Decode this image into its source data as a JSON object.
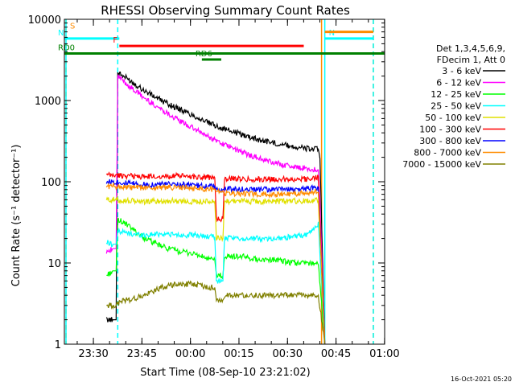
{
  "chart_data": {
    "type": "line",
    "title": "RHESSI Observing Summary Count Rates",
    "xlabel": "Start Time (08-Sep-10 23:21:02)",
    "ylabel": "Count Rate (s⁻¹ detector⁻¹)",
    "yscale": "log",
    "ylim": [
      1,
      10000
    ],
    "xlim_minutes": [
      0,
      99
    ],
    "x_tick_labels": [
      "23:30",
      "23:45",
      "00:00",
      "00:15",
      "00:30",
      "00:45",
      "01:00"
    ],
    "x_tick_minutes": [
      8.97,
      23.97,
      38.97,
      53.97,
      68.97,
      83.97,
      98.97
    ],
    "y_tick_labels": [
      "1",
      "10",
      "100",
      "1000",
      "10000"
    ],
    "y_tick_values": [
      1,
      10,
      100,
      1000,
      10000
    ],
    "legend_header": [
      "Det 1,3,4,5,6,9,",
      "FDecim 1, Att 0"
    ],
    "legend_position": "right",
    "footer_date": "16-Oct-2021 05:20",
    "series": [
      {
        "name": "3 - 6 keV",
        "color": "#000000",
        "points": [
          [
            13,
            2
          ],
          [
            15,
            2
          ],
          [
            16,
            2
          ],
          [
            16.5,
            2200
          ],
          [
            20,
            1800
          ],
          [
            25,
            1300
          ],
          [
            30,
            1000
          ],
          [
            35,
            800
          ],
          [
            40,
            650
          ],
          [
            45,
            520
          ],
          [
            50,
            440
          ],
          [
            55,
            380
          ],
          [
            60,
            330
          ],
          [
            65,
            300
          ],
          [
            70,
            275
          ],
          [
            75,
            255
          ],
          [
            78.5,
            250
          ],
          [
            79,
            200
          ],
          [
            80.5,
            0
          ]
        ]
      },
      {
        "name": "6 - 12 keV",
        "color": "#ff00ff",
        "points": [
          [
            13,
            14
          ],
          [
            15,
            15
          ],
          [
            16,
            15
          ],
          [
            16.5,
            2000
          ],
          [
            20,
            1500
          ],
          [
            25,
            1050
          ],
          [
            30,
            780
          ],
          [
            35,
            580
          ],
          [
            40,
            450
          ],
          [
            45,
            350
          ],
          [
            50,
            280
          ],
          [
            55,
            230
          ],
          [
            60,
            195
          ],
          [
            65,
            170
          ],
          [
            70,
            155
          ],
          [
            75,
            145
          ],
          [
            78.5,
            140
          ],
          [
            79,
            60
          ],
          [
            80.5,
            0
          ]
        ]
      },
      {
        "name": "12 - 25 keV",
        "color": "#00ff00",
        "points": [
          [
            13,
            7
          ],
          [
            15,
            8
          ],
          [
            16,
            8
          ],
          [
            16.5,
            35
          ],
          [
            20,
            28
          ],
          [
            25,
            20
          ],
          [
            30,
            16
          ],
          [
            35,
            14
          ],
          [
            40,
            13
          ],
          [
            45,
            11
          ],
          [
            46.5,
            11
          ],
          [
            47,
            7
          ],
          [
            49,
            7
          ],
          [
            49.5,
            12
          ],
          [
            55,
            12
          ],
          [
            60,
            11
          ],
          [
            65,
            11
          ],
          [
            70,
            10
          ],
          [
            75,
            10
          ],
          [
            78.5,
            10
          ],
          [
            80.5,
            0
          ]
        ]
      },
      {
        "name": "25 - 50 keV",
        "color": "#00ffff",
        "points": [
          [
            13,
            18
          ],
          [
            15,
            17
          ],
          [
            16,
            17
          ],
          [
            16.5,
            25
          ],
          [
            20,
            23
          ],
          [
            25,
            22
          ],
          [
            30,
            23
          ],
          [
            35,
            22
          ],
          [
            40,
            22
          ],
          [
            45,
            21
          ],
          [
            46.5,
            21
          ],
          [
            47,
            6
          ],
          [
            49,
            6
          ],
          [
            49.5,
            20
          ],
          [
            55,
            20
          ],
          [
            60,
            20
          ],
          [
            65,
            20
          ],
          [
            70,
            21
          ],
          [
            75,
            22
          ],
          [
            78.5,
            30
          ],
          [
            80.5,
            0
          ]
        ]
      },
      {
        "name": "50 - 100 keV",
        "color": "#e0e000",
        "points": [
          [
            13,
            60
          ],
          [
            16,
            60
          ],
          [
            20,
            58
          ],
          [
            25,
            57
          ],
          [
            30,
            58
          ],
          [
            35,
            58
          ],
          [
            40,
            57
          ],
          [
            45,
            57
          ],
          [
            46.5,
            57
          ],
          [
            47,
            20
          ],
          [
            49,
            20
          ],
          [
            49.5,
            58
          ],
          [
            55,
            58
          ],
          [
            60,
            57
          ],
          [
            65,
            57
          ],
          [
            70,
            58
          ],
          [
            75,
            58
          ],
          [
            78.5,
            60
          ],
          [
            80.5,
            0
          ]
        ]
      },
      {
        "name": "100 - 300 keV",
        "color": "#ff0000",
        "points": [
          [
            13,
            120
          ],
          [
            16,
            120
          ],
          [
            20,
            118
          ],
          [
            25,
            115
          ],
          [
            30,
            117
          ],
          [
            35,
            118
          ],
          [
            40,
            116
          ],
          [
            45,
            113
          ],
          [
            46.5,
            112
          ],
          [
            47,
            35
          ],
          [
            49,
            35
          ],
          [
            49.5,
            110
          ],
          [
            55,
            108
          ],
          [
            60,
            107
          ],
          [
            65,
            107
          ],
          [
            70,
            108
          ],
          [
            75,
            108
          ],
          [
            78.5,
            115
          ],
          [
            80.5,
            0
          ]
        ]
      },
      {
        "name": "300 - 800 keV",
        "color": "#0000ff",
        "points": [
          [
            13,
            100
          ],
          [
            16,
            100
          ],
          [
            20,
            95
          ],
          [
            25,
            92
          ],
          [
            30,
            93
          ],
          [
            35,
            93
          ],
          [
            40,
            90
          ],
          [
            45,
            88
          ],
          [
            46.5,
            88
          ],
          [
            47,
            80
          ],
          [
            49,
            80
          ],
          [
            49.5,
            82
          ],
          [
            55,
            81
          ],
          [
            60,
            80
          ],
          [
            65,
            80
          ],
          [
            70,
            80
          ],
          [
            75,
            82
          ],
          [
            78.5,
            85
          ],
          [
            80.5,
            0
          ]
        ]
      },
      {
        "name": "800 - 7000 keV",
        "color": "#ff8c00",
        "points": [
          [
            13,
            88
          ],
          [
            16,
            88
          ],
          [
            20,
            85
          ],
          [
            25,
            84
          ],
          [
            30,
            85
          ],
          [
            35,
            85
          ],
          [
            40,
            83
          ],
          [
            45,
            82
          ],
          [
            46.5,
            80
          ],
          [
            47,
            75
          ],
          [
            49,
            75
          ],
          [
            49.5,
            72
          ],
          [
            55,
            71
          ],
          [
            60,
            70
          ],
          [
            65,
            70
          ],
          [
            70,
            71
          ],
          [
            75,
            72
          ],
          [
            78.5,
            75
          ],
          [
            80.5,
            0
          ]
        ]
      },
      {
        "name": "7000 - 15000 keV",
        "color": "#808000",
        "points": [
          [
            13,
            3
          ],
          [
            16,
            3
          ],
          [
            18,
            3.5
          ],
          [
            20,
            3.5
          ],
          [
            25,
            4
          ],
          [
            30,
            5
          ],
          [
            35,
            5.5
          ],
          [
            40,
            5.5
          ],
          [
            45,
            5
          ],
          [
            46.5,
            5
          ],
          [
            47,
            3.5
          ],
          [
            49,
            3.5
          ],
          [
            50,
            4
          ],
          [
            55,
            4
          ],
          [
            60,
            4
          ],
          [
            65,
            4
          ],
          [
            70,
            4
          ],
          [
            75,
            4
          ],
          [
            78.5,
            4
          ],
          [
            80.5,
            0
          ]
        ]
      }
    ],
    "state_flags": [
      {
        "label": "S",
        "color": "#ff8c00",
        "y_value": 7000,
        "x_start": 0.5,
        "x_end": 0.5
      },
      {
        "label": "N",
        "color": "#00ffff",
        "y_value": 5800,
        "x_start": 0,
        "x_end": 17
      },
      {
        "label": "N",
        "color": "#00ffff",
        "y_value": 5800,
        "x_start": 80.5,
        "x_end": 95.5
      },
      {
        "label": "F",
        "color": "#ff0000",
        "y_value": 4700,
        "x_start": 17,
        "x_end": 74
      },
      {
        "label": "RD0",
        "color": "#008000",
        "y_value": 3800,
        "x_start": 0,
        "x_end": 99
      },
      {
        "label": "RD6",
        "color": "#008000",
        "y_value": 3200,
        "x_start": 42.5,
        "x_end": 48.5
      },
      {
        "label": "",
        "color": "#ff8c00",
        "y_value": 7000,
        "x_start": 80.5,
        "x_end": 95.5
      }
    ],
    "vertical_markers": [
      {
        "minute": 0.5,
        "color": "#ff8c00",
        "style": "dashed"
      },
      {
        "minute": 0.5,
        "color": "#00ffff",
        "style": "solid"
      },
      {
        "minute": 16.5,
        "color": "#00ffff",
        "style": "dashed"
      },
      {
        "minute": 79.5,
        "color": "#ff8c00",
        "style": "solid"
      },
      {
        "minute": 80.5,
        "color": "#00ffff",
        "style": "solid"
      },
      {
        "minute": 95.5,
        "color": "#ff8c00",
        "style": "dashed"
      },
      {
        "minute": 95.5,
        "color": "#00ffff",
        "style": "dashed"
      }
    ]
  }
}
